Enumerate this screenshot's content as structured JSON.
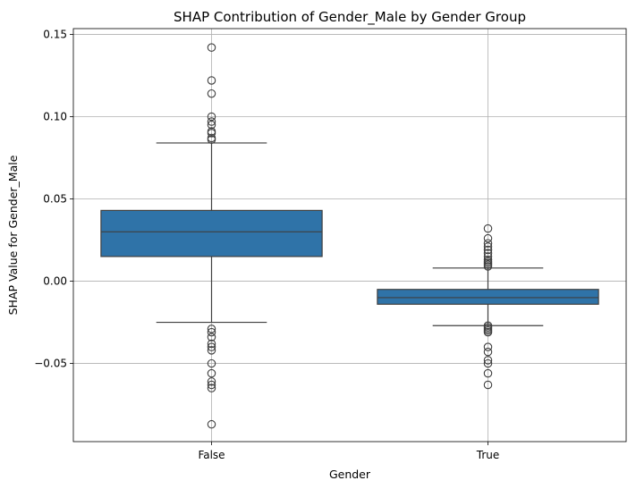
{
  "chart_data": {
    "type": "box",
    "title": "SHAP Contribution of Gender_Male by Gender Group",
    "xlabel": "Gender",
    "ylabel": "SHAP Value for Gender_Male",
    "categories": [
      "False",
      "True"
    ],
    "ylim": [
      -0.0975,
      0.1535
    ],
    "yticks": [
      -0.05,
      0.0,
      0.05,
      0.1,
      0.15
    ],
    "ytick_labels": [
      "−0.05",
      "0.00",
      "0.05",
      "0.10",
      "0.15"
    ],
    "grid": true,
    "box_color": "#2f73a8",
    "line_color": "#3f3f3f",
    "boxes": [
      {
        "category": "False",
        "whisker_low": -0.025,
        "q1": 0.015,
        "median": 0.03,
        "q3": 0.043,
        "whisker_high": 0.084,
        "outliers": [
          0.142,
          0.122,
          0.114,
          0.1,
          0.097,
          0.095,
          0.091,
          0.09,
          0.087,
          0.086,
          -0.029,
          -0.031,
          -0.034,
          -0.038,
          -0.04,
          -0.042,
          -0.05,
          -0.056,
          -0.061,
          -0.063,
          -0.065,
          -0.087
        ]
      },
      {
        "category": "True",
        "whisker_low": -0.027,
        "q1": -0.014,
        "median": -0.01,
        "q3": -0.005,
        "whisker_high": 0.008,
        "outliers": [
          0.032,
          0.026,
          0.023,
          0.021,
          0.019,
          0.017,
          0.015,
          0.013,
          0.012,
          0.011,
          0.01,
          0.009,
          -0.027,
          -0.028,
          -0.029,
          -0.03,
          -0.031,
          -0.04,
          -0.043,
          -0.048,
          -0.05,
          -0.056,
          -0.063
        ]
      }
    ]
  }
}
